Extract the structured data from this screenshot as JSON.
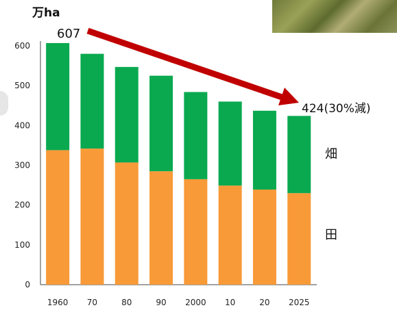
{
  "chart_data": {
    "type": "bar",
    "stacked": true,
    "categories": [
      "1960",
      "70",
      "80",
      "90",
      "2000",
      "10",
      "20",
      "2025"
    ],
    "series": [
      {
        "name": "田",
        "values": [
          338,
          342,
          307,
          285,
          265,
          249,
          239,
          230
        ],
        "color": "#f89a38"
      },
      {
        "name": "畑",
        "values": [
          269,
          238,
          240,
          240,
          219,
          211,
          198,
          194
        ],
        "color": "#0aa950"
      }
    ],
    "totals": [
      607,
      580,
      547,
      525,
      484,
      460,
      437,
      424
    ],
    "unit_label": "万ha",
    "ylim": [
      0,
      600
    ],
    "yticks": [
      0,
      100,
      200,
      300,
      400,
      500,
      600
    ],
    "grid": false,
    "annotations": {
      "start_value": "607",
      "end_value": "424",
      "end_note": "(30%減)",
      "trend_arrow_color": "#c00000"
    }
  }
}
